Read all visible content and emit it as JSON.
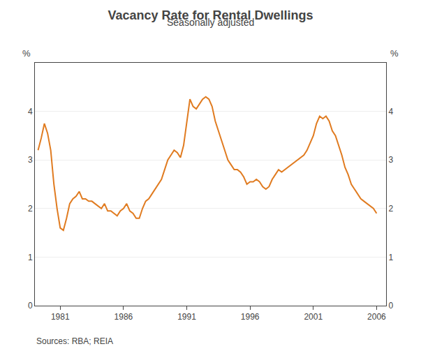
{
  "chart_data": {
    "type": "line",
    "title": "Vacancy Rate for Rental Dwellings",
    "subtitle": "Seasonally adjusted",
    "source": "Sources: RBA; REIA",
    "ylabel": "%",
    "y2label": "%",
    "color": "#E07B20",
    "grid": true,
    "xlim": [
      1979.0,
      2006.75
    ],
    "xticks": [
      1981,
      1986,
      1991,
      1996,
      2001,
      2006
    ],
    "ylim": [
      0,
      5
    ],
    "yticks": [
      0,
      1,
      2,
      3,
      4
    ],
    "y2lim": [
      0,
      5
    ],
    "y2ticks": [
      0,
      1,
      2,
      3,
      4
    ],
    "x": [
      1979.25,
      1979.5,
      1979.75,
      1980.0,
      1980.25,
      1980.5,
      1980.75,
      1981.0,
      1981.25,
      1981.5,
      1981.75,
      1982.0,
      1982.25,
      1982.5,
      1982.75,
      1983.0,
      1983.25,
      1983.5,
      1983.75,
      1984.0,
      1984.25,
      1984.5,
      1984.75,
      1985.0,
      1985.25,
      1985.5,
      1985.75,
      1986.0,
      1986.25,
      1986.5,
      1986.75,
      1987.0,
      1987.25,
      1987.5,
      1987.75,
      1988.0,
      1988.25,
      1988.5,
      1988.75,
      1989.0,
      1989.25,
      1989.5,
      1989.75,
      1990.0,
      1990.25,
      1990.5,
      1990.75,
      1991.0,
      1991.25,
      1991.5,
      1991.75,
      1992.0,
      1992.25,
      1992.5,
      1992.75,
      1993.0,
      1993.25,
      1993.5,
      1993.75,
      1994.0,
      1994.25,
      1994.5,
      1994.75,
      1995.0,
      1995.25,
      1995.5,
      1995.75,
      1996.0,
      1996.25,
      1996.5,
      1996.75,
      1997.0,
      1997.25,
      1997.5,
      1997.75,
      1998.0,
      1998.25,
      1998.5,
      1998.75,
      1999.0,
      1999.25,
      1999.5,
      1999.75,
      2000.0,
      2000.25,
      2000.5,
      2000.75,
      2001.0,
      2001.25,
      2001.5,
      2001.75,
      2002.0,
      2002.25,
      2002.5,
      2002.75,
      2003.0,
      2003.25,
      2003.5,
      2003.75,
      2004.0,
      2004.25,
      2004.5,
      2004.75,
      2005.0,
      2005.25,
      2005.5,
      2005.75,
      2006.0
    ],
    "values": [
      3.2,
      3.45,
      3.75,
      3.55,
      3.2,
      2.5,
      2.0,
      1.6,
      1.55,
      1.8,
      2.1,
      2.2,
      2.25,
      2.35,
      2.2,
      2.2,
      2.15,
      2.15,
      2.1,
      2.05,
      2.0,
      2.1,
      1.95,
      1.95,
      1.9,
      1.85,
      1.95,
      2.0,
      2.1,
      1.95,
      1.9,
      1.8,
      1.8,
      2.0,
      2.15,
      2.2,
      2.3,
      2.4,
      2.5,
      2.6,
      2.8,
      3.0,
      3.1,
      3.2,
      3.15,
      3.05,
      3.3,
      3.8,
      4.25,
      4.1,
      4.05,
      4.15,
      4.25,
      4.3,
      4.25,
      4.1,
      3.8,
      3.6,
      3.4,
      3.2,
      3.0,
      2.9,
      2.8,
      2.8,
      2.75,
      2.65,
      2.5,
      2.55,
      2.55,
      2.6,
      2.55,
      2.45,
      2.4,
      2.45,
      2.6,
      2.7,
      2.8,
      2.75,
      2.8,
      2.85,
      2.9,
      2.95,
      3.0,
      3.05,
      3.1,
      3.2,
      3.35,
      3.5,
      3.75,
      3.9,
      3.85,
      3.9,
      3.8,
      3.6,
      3.5,
      3.3,
      3.1,
      2.85,
      2.7,
      2.5,
      2.4,
      2.3,
      2.2,
      2.15,
      2.1,
      2.05,
      2.0,
      1.9
    ]
  }
}
